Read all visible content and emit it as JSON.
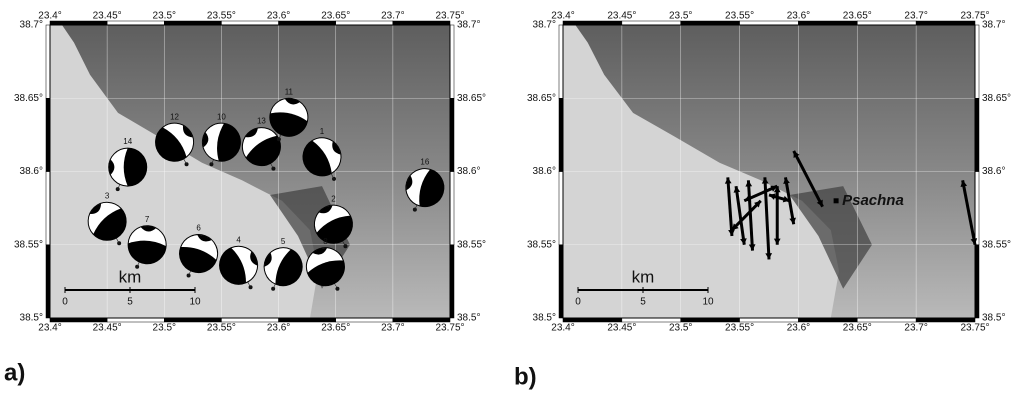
{
  "maps": [
    {
      "panel_label": "a)",
      "xlim": [
        23.4,
        23.75
      ],
      "ylim": [
        38.5,
        38.7
      ],
      "xticks": [
        {
          "value": 23.4,
          "label": "23.4°"
        },
        {
          "value": 23.45,
          "label": "23.45°"
        },
        {
          "value": 23.5,
          "label": "23.5°"
        },
        {
          "value": 23.55,
          "label": "23.55°"
        },
        {
          "value": 23.6,
          "label": "23.6°"
        },
        {
          "value": 23.65,
          "label": "23.65°"
        },
        {
          "value": 23.7,
          "label": "23.7°"
        },
        {
          "value": 23.75,
          "label": "23.75°"
        }
      ],
      "yticks": [
        {
          "value": 38.5,
          "label": "38.5°"
        },
        {
          "value": 38.55,
          "label": "38.55°"
        },
        {
          "value": 38.6,
          "label": "38.6°"
        },
        {
          "value": 38.65,
          "label": "38.65°"
        },
        {
          "value": 38.7,
          "label": "38.7°"
        }
      ],
      "scale_bar": {
        "title": "km",
        "ticks": [
          0,
          5,
          10
        ]
      },
      "events": [
        {
          "label": "14",
          "lon": 23.468,
          "lat": 38.603
        },
        {
          "label": "3",
          "lon": 23.45,
          "lat": 38.566
        },
        {
          "label": "7",
          "lon": 23.485,
          "lat": 38.55
        },
        {
          "label": "12",
          "lon": 23.509,
          "lat": 38.62
        },
        {
          "label": "10",
          "lon": 23.55,
          "lat": 38.62
        },
        {
          "label": "13",
          "lon": 23.585,
          "lat": 38.617
        },
        {
          "label": "11",
          "lon": 23.609,
          "lat": 38.637
        },
        {
          "label": "1",
          "lon": 23.638,
          "lat": 38.61
        },
        {
          "label": "16",
          "lon": 23.728,
          "lat": 38.589
        },
        {
          "label": "2",
          "lon": 23.648,
          "lat": 38.564
        },
        {
          "label": "6",
          "lon": 23.53,
          "lat": 38.544
        },
        {
          "label": "4",
          "lon": 23.565,
          "lat": 38.536
        },
        {
          "label": "5",
          "lon": 23.604,
          "lat": 38.535
        },
        {
          "label": "8",
          "lon": 23.641,
          "lat": 38.535
        }
      ]
    },
    {
      "panel_label": "b)",
      "xlim": [
        23.4,
        23.75
      ],
      "ylim": [
        38.5,
        38.7
      ],
      "xticks": [
        {
          "value": 23.4,
          "label": "23.4°"
        },
        {
          "value": 23.45,
          "label": "23.45°"
        },
        {
          "value": 23.5,
          "label": "23.5°"
        },
        {
          "value": 23.55,
          "label": "23.55°"
        },
        {
          "value": 23.6,
          "label": "23.6°"
        },
        {
          "value": 23.65,
          "label": "23.65°"
        },
        {
          "value": 23.7,
          "label": "23.7°"
        },
        {
          "value": 23.75,
          "label": "23.75°"
        }
      ],
      "yticks": [
        {
          "value": 38.5,
          "label": "38.5°"
        },
        {
          "value": 38.55,
          "label": "38.55°"
        },
        {
          "value": 38.6,
          "label": "38.6°"
        },
        {
          "value": 38.65,
          "label": "38.65°"
        },
        {
          "value": 38.7,
          "label": "38.7°"
        }
      ],
      "scale_bar": {
        "title": "km",
        "ticks": [
          0,
          5,
          10
        ]
      },
      "town": {
        "name": "Psachna",
        "lon": 23.632,
        "lat": 38.58
      }
    }
  ]
}
